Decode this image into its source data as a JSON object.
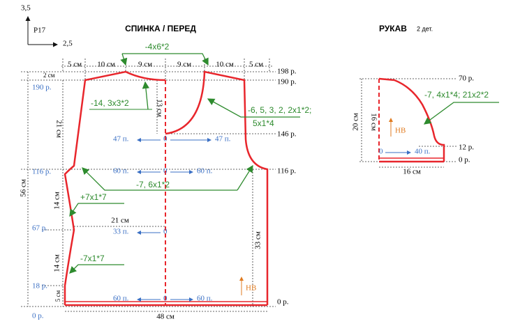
{
  "gauge": {
    "vertical": "3,5",
    "label": "Р17",
    "horizontal": "2,5"
  },
  "body": {
    "title": "СПИНКА / ПЕРЕД",
    "top_widths": [
      "5 см",
      "10 см",
      "9 см",
      "9 см",
      "10 см",
      "5 см"
    ],
    "shoulder_note": "-4х6*2",
    "right_rows": [
      "198 р.",
      "190 р.",
      "146 р.",
      "116 р.",
      "0 р."
    ],
    "left_rows": [
      "190 р.",
      "116 р.",
      "67 р.",
      "18 р.",
      "0 р."
    ],
    "lengths": [
      "2 см",
      "13 см",
      "21 см",
      "56 см",
      "14 см",
      "14 см",
      "5 см",
      "33 см",
      "21 см",
      "48 см"
    ],
    "notes": [
      "-14, 3х3*2",
      "-6, 5, 3, 2, 2х1*2;",
      "5х1*4",
      "-7, 6х1*2",
      "+7х1*7",
      "-7х1*7"
    ],
    "stitches": [
      [
        "47 п.",
        "0",
        "47 п."
      ],
      [
        "60 п.",
        "0",
        "60 п."
      ],
      [
        "33 п.",
        "0"
      ],
      [
        "60 п.",
        "0",
        "60 п."
      ]
    ],
    "hem_mark": "НВ"
  },
  "sleeve": {
    "title": "РУКАВ",
    "count": "2 дет.",
    "rows": [
      "70 р.",
      "12 р.",
      "0 р."
    ],
    "lengths": [
      "20 см",
      "16 см",
      "16 см"
    ],
    "note": "-7, 4х1*4; 21х2*2",
    "hem_mark": "НВ",
    "stitches": [
      "0",
      "40 п."
    ]
  }
}
